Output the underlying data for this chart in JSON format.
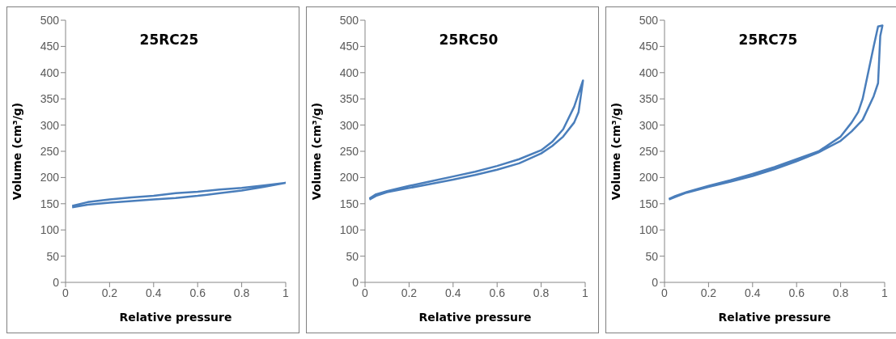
{
  "chart_data": [
    {
      "type": "line",
      "title": "25RC25",
      "xlabel": "Relative pressure",
      "ylabel": "Volume (cm³/g)",
      "xlim": [
        0,
        1
      ],
      "xticks": [
        0,
        0.2,
        0.4,
        0.6,
        0.8,
        1
      ],
      "ylim": [
        0,
        500
      ],
      "yticks": [
        0,
        50,
        100,
        150,
        200,
        250,
        300,
        350,
        400,
        450,
        500
      ],
      "marker": "none",
      "line_style": "solid",
      "series": [
        {
          "color": "#4a7ebb",
          "x": [
            0.03,
            0.1,
            0.2,
            0.3,
            0.4,
            0.5,
            0.6,
            0.7,
            0.8,
            0.9,
            1.0,
            0.9,
            0.8,
            0.7,
            0.6,
            0.5,
            0.4,
            0.3,
            0.2,
            0.1,
            0.03
          ],
          "values": [
            143,
            148,
            152,
            155,
            158,
            161,
            165,
            170,
            175,
            182,
            190,
            185,
            180,
            177,
            173,
            170,
            165,
            162,
            158,
            153,
            146
          ]
        }
      ]
    },
    {
      "type": "line",
      "title": "25RC50",
      "xlabel": "Relative pressure",
      "ylabel": "Volume (cm³/g)",
      "xlim": [
        0,
        1
      ],
      "xticks": [
        0,
        0.2,
        0.4,
        0.6,
        0.8,
        1
      ],
      "ylim": [
        0,
        500
      ],
      "yticks": [
        0,
        50,
        100,
        150,
        200,
        250,
        300,
        350,
        400,
        450,
        500
      ],
      "marker": "none",
      "line_style": "solid",
      "series": [
        {
          "color": "#4a7ebb",
          "x": [
            0.02,
            0.05,
            0.1,
            0.2,
            0.3,
            0.4,
            0.5,
            0.6,
            0.7,
            0.8,
            0.85,
            0.9,
            0.95,
            0.97,
            0.99,
            0.97,
            0.95,
            0.9,
            0.85,
            0.8,
            0.7,
            0.6,
            0.5,
            0.4,
            0.3,
            0.2,
            0.1,
            0.05,
            0.02
          ],
          "values": [
            158,
            165,
            172,
            180,
            188,
            196,
            205,
            215,
            227,
            246,
            260,
            278,
            305,
            325,
            385,
            360,
            335,
            292,
            268,
            252,
            235,
            222,
            211,
            202,
            193,
            184,
            174,
            168,
            160
          ]
        }
      ]
    },
    {
      "type": "line",
      "title": "25RC75",
      "xlabel": "Relative pressure",
      "ylabel": "Volume (cm³/g)",
      "xlim": [
        0,
        1
      ],
      "xticks": [
        0,
        0.2,
        0.4,
        0.6,
        0.8,
        1
      ],
      "ylim": [
        0,
        500
      ],
      "yticks": [
        0,
        50,
        100,
        150,
        200,
        250,
        300,
        350,
        400,
        450,
        500
      ],
      "marker": "none",
      "line_style": "solid",
      "series": [
        {
          "color": "#4a7ebb",
          "x": [
            0.02,
            0.05,
            0.1,
            0.2,
            0.3,
            0.4,
            0.5,
            0.6,
            0.7,
            0.8,
            0.85,
            0.9,
            0.95,
            0.97,
            0.98,
            0.99,
            0.97,
            0.95,
            0.9,
            0.88,
            0.85,
            0.8,
            0.7,
            0.6,
            0.5,
            0.4,
            0.3,
            0.2,
            0.1,
            0.05,
            0.02
          ],
          "values": [
            158,
            163,
            171,
            182,
            192,
            203,
            216,
            231,
            248,
            270,
            288,
            310,
            355,
            380,
            470,
            490,
            488,
            450,
            350,
            325,
            305,
            278,
            250,
            235,
            220,
            207,
            195,
            184,
            172,
            165,
            159
          ]
        }
      ]
    }
  ]
}
